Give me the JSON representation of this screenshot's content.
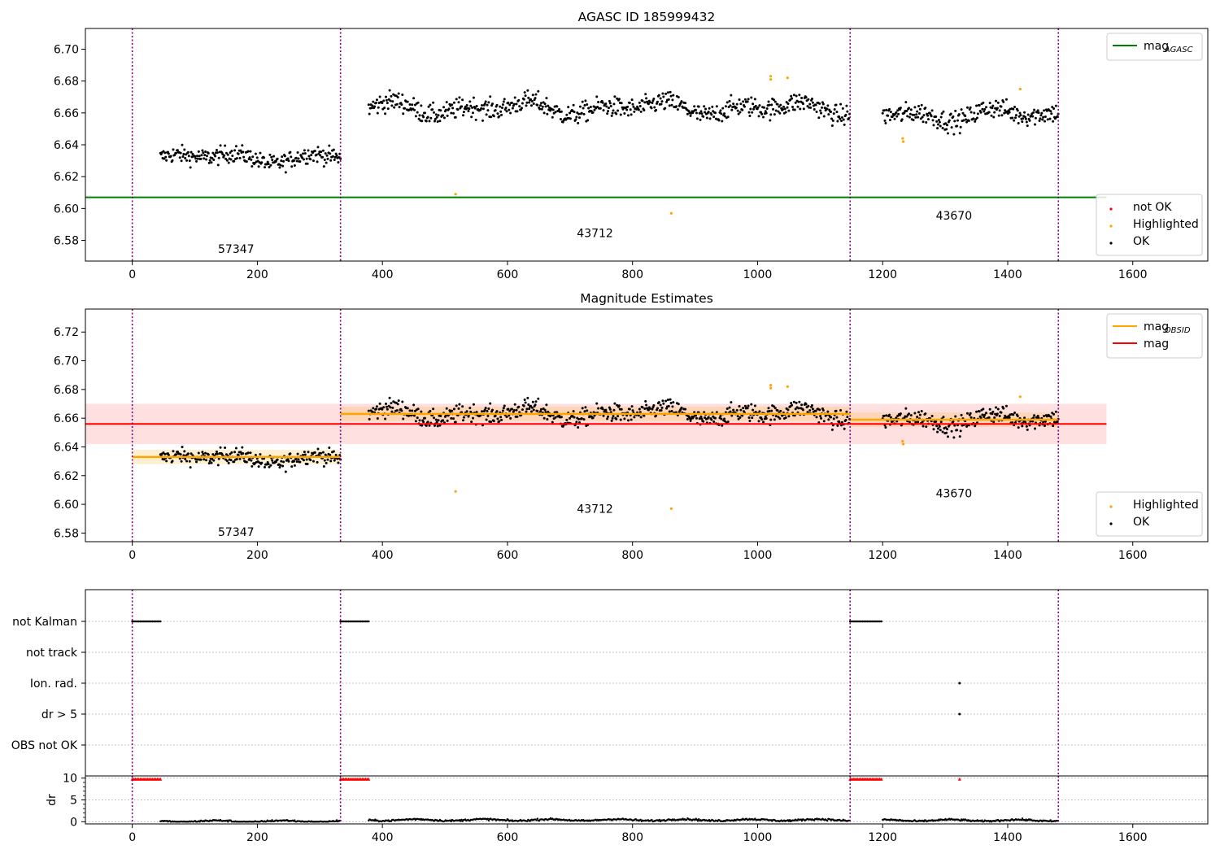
{
  "chart_data": [
    {
      "type": "scatter",
      "title": "AGASC ID 185999432",
      "xlim": [
        -75,
        1720
      ],
      "ylim": [
        6.567,
        6.713
      ],
      "xticks": [
        0,
        200,
        400,
        600,
        800,
        1000,
        1200,
        1400,
        1600
      ],
      "yticks": [
        6.58,
        6.6,
        6.62,
        6.64,
        6.66,
        6.68,
        6.7
      ],
      "obsid_boundaries": [
        0,
        333,
        1148,
        1481
      ],
      "obsid_labels": [
        {
          "text": "57347",
          "x": 166,
          "y": 6.572
        },
        {
          "text": "43712",
          "x": 740,
          "y": 6.582
        },
        {
          "text": "43670",
          "x": 1314,
          "y": 6.593
        }
      ],
      "lines": [
        {
          "name": "mag_AGASC",
          "y": 6.607,
          "x_range": [
            -75,
            1558
          ],
          "color": "#008000"
        }
      ],
      "segments": [
        {
          "x_range": [
            45,
            333
          ],
          "base": 6.632,
          "wave": 0.004,
          "noise": 0.006
        },
        {
          "x_range": [
            378,
            1148
          ],
          "base": 6.663,
          "wave": 0.005,
          "noise": 0.007
        },
        {
          "x_range": [
            1200,
            1481
          ],
          "base": 6.659,
          "wave": 0.005,
          "noise": 0.007
        }
      ],
      "highlighted_points": [
        {
          "x": 517,
          "y": 6.609
        },
        {
          "x": 862,
          "y": 6.597
        },
        {
          "x": 1021,
          "y": 6.683
        },
        {
          "x": 1021,
          "y": 6.681
        },
        {
          "x": 1048,
          "y": 6.682
        },
        {
          "x": 1232,
          "y": 6.644
        },
        {
          "x": 1233,
          "y": 6.642
        },
        {
          "x": 1420,
          "y": 6.675
        }
      ],
      "legend_upper": {
        "placement": "top-right",
        "entries": [
          {
            "label": "mag",
            "sub": "AGASC",
            "color": "#008000"
          }
        ]
      },
      "legend_lower": {
        "placement": "bottom-right",
        "entries": [
          {
            "label": "not OK",
            "color": "#ff0000"
          },
          {
            "label": "Highlighted",
            "color": "#ffa500"
          },
          {
            "label": "OK",
            "color": "#000000"
          }
        ]
      }
    },
    {
      "type": "scatter",
      "title": "Magnitude Estimates",
      "xlim": [
        -75,
        1720
      ],
      "ylim": [
        6.574,
        6.736
      ],
      "xticks": [
        0,
        200,
        400,
        600,
        800,
        1000,
        1200,
        1400,
        1600
      ],
      "yticks": [
        6.58,
        6.6,
        6.62,
        6.64,
        6.66,
        6.68,
        6.7,
        6.72
      ],
      "obsid_boundaries": [
        0,
        333,
        1148,
        1481
      ],
      "obsid_labels": [
        {
          "text": "57347",
          "x": 166,
          "y": 6.578
        },
        {
          "text": "43712",
          "x": 740,
          "y": 6.594
        },
        {
          "text": "43670",
          "x": 1314,
          "y": 6.605
        }
      ],
      "mag": {
        "y": 6.656,
        "band": [
          6.642,
          6.67
        ],
        "x_range": [
          -75,
          1558
        ],
        "color": "#ff0000"
      },
      "mag_obsid": [
        {
          "x_range": [
            0,
            333
          ],
          "y": 6.633,
          "band": [
            6.628,
            6.638
          ]
        },
        {
          "x_range": [
            333,
            1148
          ],
          "y": 6.663,
          "band": [
            6.658,
            6.668
          ]
        },
        {
          "x_range": [
            1148,
            1481
          ],
          "y": 6.659,
          "band": [
            6.654,
            6.664
          ]
        }
      ],
      "legend_upper": {
        "placement": "top-right",
        "entries": [
          {
            "label": "mag",
            "sub": "OBSID",
            "color": "#ffa500"
          },
          {
            "label": "mag",
            "sub": "",
            "color": "#ff0000"
          }
        ]
      },
      "legend_lower": {
        "placement": "bottom-right",
        "entries": [
          {
            "label": "Highlighted",
            "color": "#ffa500"
          },
          {
            "label": "OK",
            "color": "#000000"
          }
        ]
      }
    },
    {
      "type": "scatter",
      "title": "",
      "xlim": [
        -75,
        1720
      ],
      "categories": [
        "not Kalman",
        "not track",
        "Ion. rad.",
        "dr > 5",
        "OBS not OK"
      ],
      "flag_ranges": [
        {
          "category": "not Kalman",
          "x_range": [
            0,
            45
          ]
        },
        {
          "category": "not Kalman",
          "x_range": [
            333,
            378
          ]
        },
        {
          "category": "not Kalman",
          "x_range": [
            1148,
            1200
          ]
        }
      ],
      "flag_points": [
        {
          "category": "Ion. rad.",
          "x": 1323
        },
        {
          "category": "dr > 5",
          "x": 1323
        }
      ]
    },
    {
      "type": "scatter",
      "title": "",
      "ylabel": "dr",
      "xlim": [
        -75,
        1720
      ],
      "ylim": [
        -0.5,
        10.5
      ],
      "xticks": [
        0,
        200,
        400,
        600,
        800,
        1000,
        1200,
        1400,
        1600
      ],
      "yticks": [
        0,
        5,
        10
      ],
      "clipped_ranges": [
        [
          0,
          45
        ],
        [
          333,
          378
        ],
        [
          1148,
          1200
        ]
      ],
      "clipped_points": [
        1323
      ],
      "dr_segments": [
        {
          "x_range": [
            45,
            333
          ],
          "level": 0.1
        },
        {
          "x_range": [
            378,
            1148
          ],
          "level": 0.4
        },
        {
          "x_range": [
            1200,
            1481
          ],
          "level": 0.3
        }
      ]
    }
  ]
}
